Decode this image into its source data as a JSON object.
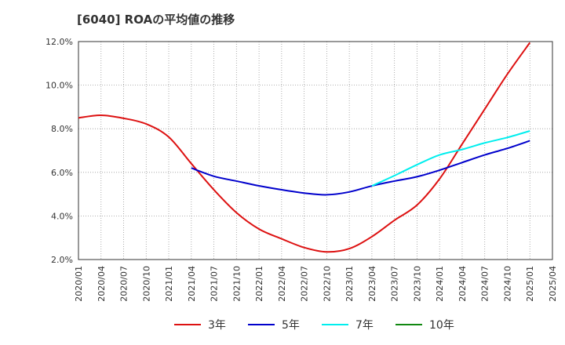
{
  "chart_data": {
    "type": "line",
    "title": "[6040]  ROAの平均値の推移",
    "xlabel": "",
    "ylabel": "",
    "ylim": [
      2.0,
      12.0
    ],
    "y_ticks": [
      "2.0%",
      "4.0%",
      "6.0%",
      "8.0%",
      "10.0%",
      "12.0%"
    ],
    "x_ticks": [
      "2020/01",
      "2020/04",
      "2020/07",
      "2020/10",
      "2021/01",
      "2021/04",
      "2021/07",
      "2021/10",
      "2022/01",
      "2022/04",
      "2022/07",
      "2022/10",
      "2023/01",
      "2023/04",
      "2023/07",
      "2023/10",
      "2024/01",
      "2024/04",
      "2024/07",
      "2024/10",
      "2025/01",
      "2025/04"
    ],
    "grid": true,
    "legend_position": "bottom",
    "series": [
      {
        "name": "3年",
        "color": "#dd1111",
        "values": [
          8.5,
          8.62,
          8.48,
          8.22,
          7.62,
          6.4,
          5.2,
          4.15,
          3.4,
          2.95,
          2.55,
          2.35,
          2.5,
          3.05,
          3.8,
          4.5,
          5.7,
          7.3,
          8.9,
          10.5,
          11.95,
          null
        ]
      },
      {
        "name": "5年",
        "color": "#0000cc",
        "values": [
          null,
          null,
          null,
          null,
          null,
          6.2,
          5.82,
          5.6,
          5.38,
          5.2,
          5.05,
          4.97,
          5.1,
          5.38,
          5.6,
          5.8,
          6.1,
          6.45,
          6.8,
          7.1,
          7.45,
          null
        ]
      },
      {
        "name": "7年",
        "color": "#00eeee",
        "values": [
          null,
          null,
          null,
          null,
          null,
          null,
          null,
          null,
          null,
          null,
          null,
          null,
          null,
          5.38,
          5.85,
          6.35,
          6.8,
          7.05,
          7.35,
          7.6,
          7.9,
          null
        ]
      },
      {
        "name": "10年",
        "color": "#118811",
        "values": [
          null,
          null,
          null,
          null,
          null,
          null,
          null,
          null,
          null,
          null,
          null,
          null,
          null,
          null,
          null,
          null,
          null,
          null,
          null,
          null,
          null,
          null
        ]
      }
    ]
  }
}
